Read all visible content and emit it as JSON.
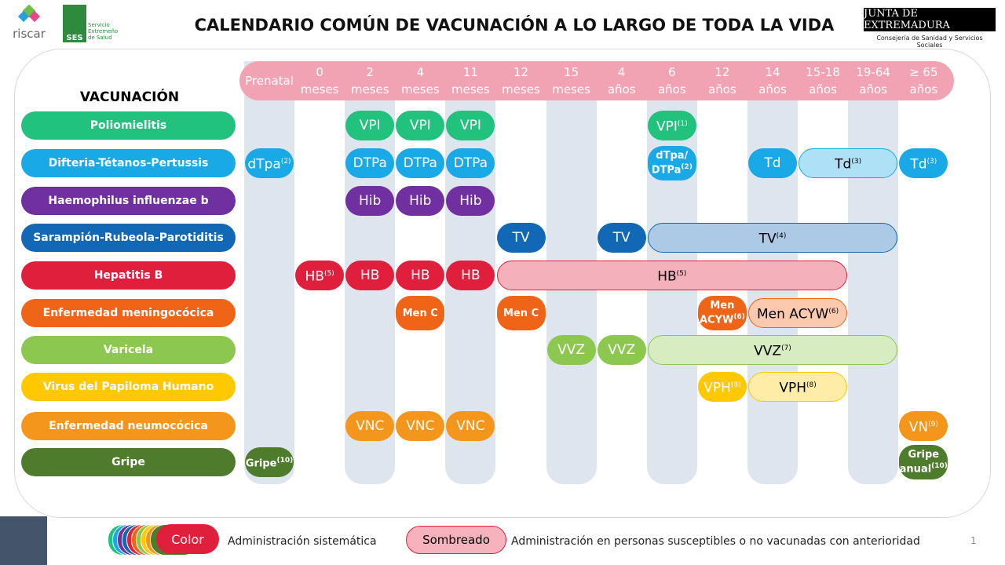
{
  "header": {
    "title": "CALENDARIO COMÚN DE VACUNACIÓN A LO LARGO DE TODA LA VIDA",
    "logo_left": "riscar",
    "logo_ses": "SES",
    "logo_ses_text": "Servicio Extremeño de Salud",
    "logo_right": "JUNTA DE EXTREMADURA",
    "logo_right_sub": "Consejería de Sanidad y Servicios Sociales"
  },
  "rows_header": "VACUNACIÓN",
  "columns": [
    [
      "Prenatal"
    ],
    [
      "0",
      "meses"
    ],
    [
      "2",
      "meses"
    ],
    [
      "4",
      "meses"
    ],
    [
      "11",
      "meses"
    ],
    [
      "12",
      "meses"
    ],
    [
      "15",
      "meses"
    ],
    [
      "4",
      "años"
    ],
    [
      "6",
      "años"
    ],
    [
      "12",
      "años"
    ],
    [
      "14",
      "años"
    ],
    [
      "15-18",
      "años"
    ],
    [
      "19-64",
      "años"
    ],
    [
      "≥ 65",
      "años"
    ]
  ],
  "rows": [
    {
      "label": "Poliomielitis",
      "color": "#20c27e",
      "pills": [
        {
          "text": "VPI",
          "col": 2
        },
        {
          "text": "VPI",
          "col": 3
        },
        {
          "text": "VPI",
          "col": 4
        },
        {
          "text": "VPI",
          "sup": "(1)",
          "col": 8
        }
      ]
    },
    {
      "label": "Difteria-Tétanos-Pertussis",
      "color": "#19a9e6",
      "pills": [
        {
          "text": "dTpa",
          "sup": "(2)",
          "col": 0
        },
        {
          "text": "DTPa",
          "col": 2
        },
        {
          "text": "DTPa",
          "col": 3
        },
        {
          "text": "DTPa",
          "col": 4
        },
        {
          "text": "dTpa/ DTPa",
          "sup": "(2)",
          "col": 8
        },
        {
          "text": "Td",
          "col": 10
        },
        {
          "text": "Td",
          "sup": "(3)",
          "col": 11,
          "end": 12,
          "shaded": true
        },
        {
          "text": "Td",
          "sup": "(3)",
          "col": 13
        }
      ]
    },
    {
      "label": "Haemophilus influenzae b",
      "color": "#7030a0",
      "pills": [
        {
          "text": "Hib",
          "col": 2
        },
        {
          "text": "Hib",
          "col": 3
        },
        {
          "text": "Hib",
          "col": 4
        }
      ]
    },
    {
      "label": "Sarampión-Rubeola-Parotiditis",
      "color": "#1268b5",
      "pills": [
        {
          "text": "TV",
          "col": 5
        },
        {
          "text": "TV",
          "col": 7
        },
        {
          "text": "TV",
          "sup": "(4)",
          "col": 8,
          "end": 12,
          "shaded": true
        }
      ]
    },
    {
      "label": "Hepatitis B",
      "color": "#e01f3d",
      "pills": [
        {
          "text": "HB",
          "sup": "(5)",
          "col": 1
        },
        {
          "text": "HB",
          "col": 2
        },
        {
          "text": "HB",
          "col": 3
        },
        {
          "text": "HB",
          "col": 4
        },
        {
          "text": "HB",
          "sup": "(5)",
          "col": 5,
          "end": 11,
          "shaded": true
        }
      ]
    },
    {
      "label": "Enfermedad meningocócica",
      "color": "#f06418",
      "pills": [
        {
          "text": "Men C",
          "col": 3
        },
        {
          "text": "Men C",
          "col": 5
        },
        {
          "text": "Men ACYW",
          "sup": "(6)",
          "col": 9
        },
        {
          "text": "Men ACYW",
          "sup": "(6)",
          "col": 10,
          "end": 11,
          "shaded": true
        }
      ]
    },
    {
      "label": "Varicela",
      "color": "#8cc84f",
      "pills": [
        {
          "text": "VVZ",
          "col": 6
        },
        {
          "text": "VVZ",
          "col": 7
        },
        {
          "text": "VVZ",
          "sup": "(7)",
          "col": 8,
          "end": 12,
          "shaded": true
        }
      ]
    },
    {
      "label": "Virus del Papiloma Humano",
      "color": "#ffc800",
      "pills": [
        {
          "text": "VPH",
          "sup": "(8)",
          "col": 9
        },
        {
          "text": "VPH",
          "sup": "(8)",
          "col": 10,
          "end": 11,
          "shaded": true
        }
      ]
    },
    {
      "label": "Enfermedad neumocócica",
      "color": "#f4961c",
      "pills": [
        {
          "text": "VNC",
          "col": 2
        },
        {
          "text": "VNC",
          "col": 3
        },
        {
          "text": "VNC",
          "col": 4
        },
        {
          "text": "VN",
          "sup": "(9)",
          "col": 13
        }
      ]
    },
    {
      "label": "Gripe",
      "color": "#4e7c2c",
      "pills": [
        {
          "text": "Gripe",
          "sup": "(10)",
          "col": 0
        },
        {
          "text": "Gripe anual",
          "sup": "(10)",
          "col": 13
        }
      ]
    }
  ],
  "legend": {
    "color_label": "Color",
    "color_text": "Administración sistemática",
    "shade_label": "Sombreado",
    "shade_text": "Administración en personas susceptibles o no vacunadas con anterioridad"
  },
  "page_number": "1"
}
